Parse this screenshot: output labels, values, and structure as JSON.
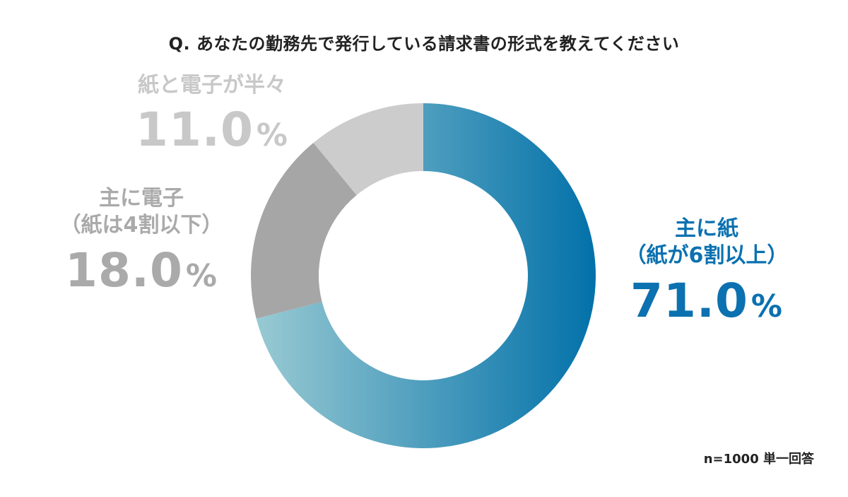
{
  "title": "Q. あなたの勤務先で発行している請求書の形式を教えてください",
  "note": "n=1000 単一回答",
  "colors": {
    "paper_start": "#9bcbd3",
    "paper_end": "#0271a9",
    "mainly_electronic": "#a6a6a6",
    "half_and_half": "#cccccc",
    "label_paper": "#0b71b0",
    "label_electronic": "#aaaaaa",
    "label_half": "#c8c8c8"
  },
  "labels": {
    "paper": {
      "name_line1": "主に紙",
      "name_line2": "（紙が6割以上）",
      "value": "71.0",
      "unit": "%"
    },
    "electronic": {
      "name_line1": "主に電子",
      "name_line2": "（紙は4割以下）",
      "value": "18.0",
      "unit": "%"
    },
    "both": {
      "name_line1": "紙と電子が半々",
      "value": "11.0",
      "unit": "%"
    }
  },
  "chart_data": {
    "type": "pie",
    "title": "Q. あなたの勤務先で発行している請求書の形式を教えてください",
    "categories": [
      "主に紙（紙が6割以上）",
      "主に電子（紙は4割以下）",
      "紙と電子が半々"
    ],
    "values": [
      71.0,
      18.0,
      11.0
    ],
    "unit": "%",
    "style": "donut",
    "sample_note": "n=1000 単一回答"
  }
}
